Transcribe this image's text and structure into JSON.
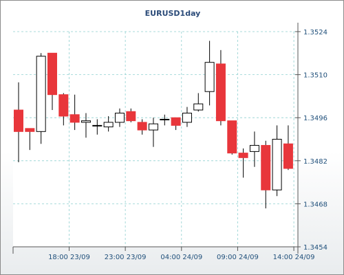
{
  "chart_data": {
    "type": "candlestick",
    "title": "EURUSD1day",
    "y_ticks": [
      1.3454,
      1.3468,
      1.3482,
      1.3496,
      1.351,
      1.3524
    ],
    "y_tick_labels": [
      "1.3454",
      "1.3468",
      "1.3482",
      "1.3496",
      "1.3510",
      "1.3524"
    ],
    "ylim": [
      1.3454,
      1.3524
    ],
    "x_tick_labels": [
      "18:00 23/09",
      "23:00 23/09",
      "04:00 24/09",
      "09:00 24/09",
      "14:00 24/09"
    ],
    "x_tick_index": [
      4.5,
      9.5,
      14.5,
      19.5,
      24.5
    ],
    "grid": true,
    "up_color": "#ffffff",
    "down_color": "#e8363b",
    "series": [
      {
        "open": 1.34985,
        "high": 1.35075,
        "low": 1.34815,
        "close": 1.34915
      },
      {
        "open": 1.34925,
        "high": 1.34925,
        "low": 1.34855,
        "close": 1.34915
      },
      {
        "open": 1.34915,
        "high": 1.3517,
        "low": 1.34875,
        "close": 1.3516
      },
      {
        "open": 1.3517,
        "high": 1.3517,
        "low": 1.34985,
        "close": 1.35035
      },
      {
        "open": 1.35035,
        "high": 1.3504,
        "low": 1.34935,
        "close": 1.34965
      },
      {
        "open": 1.3497,
        "high": 1.35035,
        "low": 1.3492,
        "close": 1.34945
      },
      {
        "open": 1.34945,
        "high": 1.34975,
        "low": 1.34895,
        "close": 1.3495
      },
      {
        "open": 1.34935,
        "high": 1.34955,
        "low": 1.34905,
        "close": 1.34935
      },
      {
        "open": 1.3493,
        "high": 1.34965,
        "low": 1.34915,
        "close": 1.34945
      },
      {
        "open": 1.34945,
        "high": 1.3499,
        "low": 1.3493,
        "close": 1.34975
      },
      {
        "open": 1.3498,
        "high": 1.3499,
        "low": 1.34945,
        "close": 1.3495
      },
      {
        "open": 1.34945,
        "high": 1.34955,
        "low": 1.34905,
        "close": 1.3492
      },
      {
        "open": 1.3492,
        "high": 1.3496,
        "low": 1.34865,
        "close": 1.3494
      },
      {
        "open": 1.34955,
        "high": 1.3497,
        "low": 1.34935,
        "close": 1.34955
      },
      {
        "open": 1.3496,
        "high": 1.3496,
        "low": 1.3492,
        "close": 1.34935
      },
      {
        "open": 1.34945,
        "high": 1.34995,
        "low": 1.3493,
        "close": 1.34975
      },
      {
        "open": 1.34985,
        "high": 1.3504,
        "low": 1.3498,
        "close": 1.35005
      },
      {
        "open": 1.35045,
        "high": 1.3521,
        "low": 1.35,
        "close": 1.3514
      },
      {
        "open": 1.35135,
        "high": 1.3518,
        "low": 1.34935,
        "close": 1.3495
      },
      {
        "open": 1.3495,
        "high": 1.3495,
        "low": 1.3484,
        "close": 1.34845
      },
      {
        "open": 1.34845,
        "high": 1.3486,
        "low": 1.34765,
        "close": 1.3483
      },
      {
        "open": 1.3485,
        "high": 1.34915,
        "low": 1.348,
        "close": 1.3487
      },
      {
        "open": 1.3487,
        "high": 1.34885,
        "low": 1.34665,
        "close": 1.34725
      },
      {
        "open": 1.34725,
        "high": 1.34935,
        "low": 1.34705,
        "close": 1.3489
      },
      {
        "open": 1.34875,
        "high": 1.34935,
        "low": 1.3479,
        "close": 1.34795
      }
    ]
  }
}
